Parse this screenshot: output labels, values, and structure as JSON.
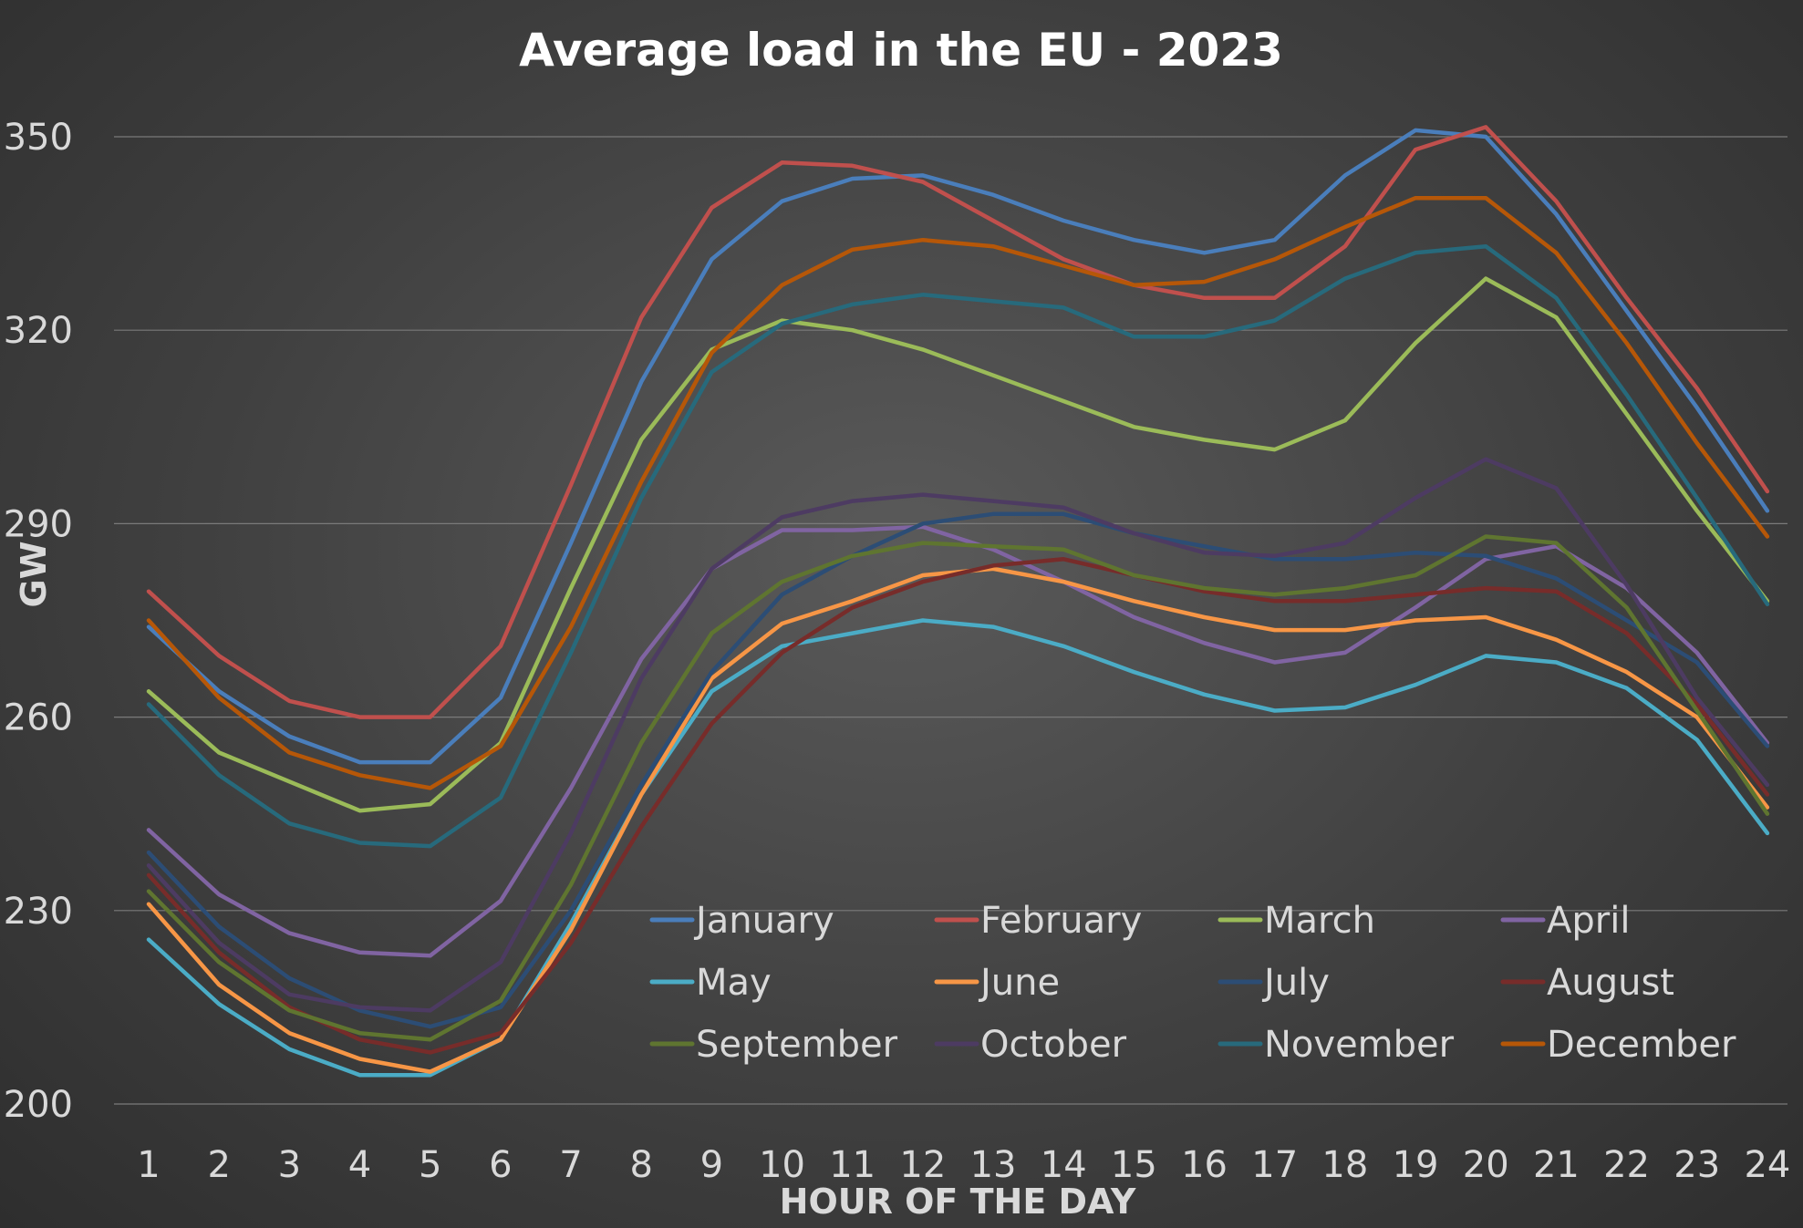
{
  "chart_data": {
    "type": "line",
    "title": "Average load in the EU - 2023",
    "xlabel": "HOUR OF THE DAY",
    "ylabel": "GW",
    "x": [
      1,
      2,
      3,
      4,
      5,
      6,
      7,
      8,
      9,
      10,
      11,
      12,
      13,
      14,
      15,
      16,
      17,
      18,
      19,
      20,
      21,
      22,
      23,
      24
    ],
    "ylim": [
      200,
      350
    ],
    "yticks": [
      200,
      230,
      260,
      290,
      320,
      350
    ],
    "grid": true,
    "legend_position": "bottom-center",
    "series": [
      {
        "name": "January",
        "color": "#4a7ebb",
        "values": [
          274,
          264,
          257,
          253,
          253,
          263,
          287,
          312,
          331,
          340,
          343.5,
          344,
          341,
          337,
          334,
          332,
          334,
          344,
          351,
          350,
          338,
          323,
          308,
          292
        ]
      },
      {
        "name": "February",
        "color": "#c0504d",
        "values": [
          279.5,
          269.5,
          262.5,
          260,
          260,
          271,
          296,
          322,
          339,
          346,
          345.5,
          343,
          337,
          331,
          327,
          325,
          325,
          333,
          348,
          351.5,
          340,
          325,
          311,
          295
        ]
      },
      {
        "name": "March",
        "color": "#9bbb59",
        "values": [
          264,
          254.5,
          250,
          245.5,
          246.5,
          256,
          280,
          303,
          317,
          321.5,
          320,
          317,
          313,
          309,
          305,
          303,
          301.5,
          306,
          318,
          328,
          322,
          307,
          292,
          278
        ]
      },
      {
        "name": "April",
        "color": "#8064a2",
        "values": [
          242.5,
          232.5,
          226.5,
          223.5,
          223,
          231.5,
          249,
          269,
          283,
          289,
          289,
          289.5,
          286,
          281,
          275.5,
          271.5,
          268.5,
          270,
          277,
          284.5,
          286.5,
          280,
          270,
          256
        ]
      },
      {
        "name": "May",
        "color": "#4bacc6",
        "values": [
          225.5,
          215.5,
          208.5,
          204.5,
          204.5,
          210,
          228,
          248,
          264,
          271,
          273,
          275,
          274,
          271,
          267,
          263.5,
          261,
          261.5,
          265,
          269.5,
          268.5,
          264.5,
          256.5,
          242
        ]
      },
      {
        "name": "June",
        "color": "#f79646",
        "values": [
          231,
          218.5,
          211,
          207,
          205,
          210,
          227,
          248,
          266,
          274.5,
          278,
          282,
          283,
          281,
          278,
          275.5,
          273.5,
          273.5,
          275,
          275.5,
          272,
          267,
          260,
          246
        ]
      },
      {
        "name": "July",
        "color": "#2c4d75",
        "values": [
          239,
          227.5,
          219.5,
          214.5,
          212,
          215,
          230,
          249.5,
          267,
          279,
          285,
          290,
          291.5,
          291.5,
          288.5,
          286.5,
          284.5,
          284.5,
          285.5,
          285,
          281.5,
          275,
          268.5,
          255.5
        ]
      },
      {
        "name": "August",
        "color": "#772c2a",
        "values": [
          235.5,
          223.5,
          215,
          210,
          208,
          211,
          225,
          243,
          259,
          270,
          277,
          281,
          283.5,
          284.5,
          282,
          279.5,
          278,
          278,
          279,
          280,
          279.5,
          273,
          262,
          248
        ]
      },
      {
        "name": "September",
        "color": "#5f7530",
        "values": [
          233,
          222,
          214.5,
          211,
          210,
          216,
          234,
          256,
          273,
          281,
          285,
          287,
          286.5,
          286,
          282,
          280,
          279,
          280,
          282,
          288,
          287,
          277,
          261,
          245
        ]
      },
      {
        "name": "October",
        "color": "#4d3b62",
        "values": [
          237,
          225,
          217,
          215,
          214.5,
          222,
          242,
          266,
          283,
          291,
          293.5,
          294.5,
          293.5,
          292.5,
          288.5,
          285.5,
          285,
          287,
          294,
          300,
          295.5,
          280.5,
          263,
          249.5
        ]
      },
      {
        "name": "November",
        "color": "#276a7c",
        "values": [
          262,
          251,
          243.5,
          240.5,
          240,
          247.5,
          270,
          294,
          313.5,
          321,
          324,
          325.5,
          324.5,
          323.5,
          319,
          319,
          321.5,
          328,
          332,
          333,
          325,
          310,
          294,
          277.5
        ]
      },
      {
        "name": "December",
        "color": "#b65708",
        "values": [
          275,
          263,
          254.5,
          251,
          249,
          255.5,
          274,
          296.5,
          316.5,
          327,
          332.5,
          334,
          333,
          330,
          327,
          327.5,
          331,
          336,
          340.5,
          340.5,
          332,
          318,
          302.5,
          288
        ]
      }
    ]
  }
}
